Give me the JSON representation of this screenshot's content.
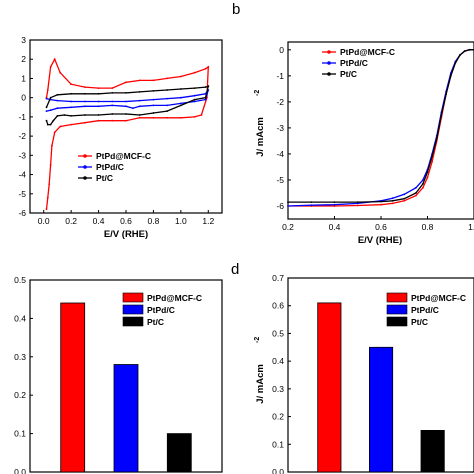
{
  "colors": {
    "red": "#ff0000",
    "blue": "#0000ff",
    "black": "#000000",
    "pink": "#f08080"
  },
  "chart_data": [
    {
      "panel": "a",
      "type": "line",
      "xlabel": "E/V (RHE)",
      "ylabel": "",
      "xlim": [
        -0.1,
        1.3
      ],
      "ylim": [
        -6,
        3
      ],
      "xticks": [
        "0.0",
        "0.2",
        "0.4",
        "0.6",
        "0.8",
        "1.0",
        "1.2"
      ],
      "yticks": [
        "-6",
        "-5",
        "-4",
        "-3",
        "-2",
        "-1",
        "0",
        "1",
        "2",
        "3"
      ],
      "legend": [
        "PtPd@MCF-C",
        "PtPd/C",
        "Pt/C"
      ],
      "series": [
        {
          "name": "PtPd@MCF-C",
          "color": "#ff0000",
          "x": [
            0.02,
            0.03,
            0.05,
            0.08,
            0.12,
            0.2,
            0.3,
            0.4,
            0.5,
            0.6,
            0.7,
            0.8,
            0.9,
            1.0,
            1.1,
            1.18,
            1.2,
            1.19,
            1.15,
            1.1,
            1.0,
            0.9,
            0.8,
            0.7,
            0.6,
            0.5,
            0.4,
            0.3,
            0.2,
            0.12,
            0.08,
            0.06,
            0.05,
            0.04,
            0.03,
            0.02
          ],
          "y": [
            0.0,
            0.4,
            1.6,
            2.0,
            1.3,
            0.7,
            0.55,
            0.5,
            0.5,
            0.8,
            0.9,
            0.9,
            1.0,
            1.1,
            1.3,
            1.5,
            1.6,
            0.0,
            -0.9,
            -1.0,
            -1.05,
            -1.05,
            -1.05,
            -1.05,
            -1.2,
            -1.2,
            -1.2,
            -1.3,
            -1.4,
            -1.5,
            -1.8,
            -2.5,
            -3.5,
            -4.5,
            -5.2,
            -5.8
          ]
        },
        {
          "name": "PtPd/C",
          "color": "#0000ff",
          "x": [
            0.02,
            0.05,
            0.1,
            0.2,
            0.3,
            0.4,
            0.5,
            0.6,
            0.7,
            0.8,
            0.9,
            1.0,
            1.1,
            1.18,
            1.2,
            1.18,
            1.1,
            1.0,
            0.9,
            0.8,
            0.7,
            0.65,
            0.6,
            0.5,
            0.4,
            0.3,
            0.2,
            0.1,
            0.05,
            0.02
          ],
          "y": [
            -0.05,
            -0.1,
            -0.15,
            -0.2,
            -0.2,
            -0.2,
            -0.2,
            -0.2,
            -0.15,
            -0.1,
            -0.05,
            0.0,
            0.1,
            0.2,
            0.4,
            -0.1,
            -0.2,
            -0.3,
            -0.4,
            -0.4,
            -0.45,
            -0.55,
            -0.45,
            -0.4,
            -0.45,
            -0.45,
            -0.5,
            -0.55,
            -0.65,
            -0.7
          ]
        },
        {
          "name": "Pt/C",
          "color": "#000000",
          "x": [
            0.02,
            0.05,
            0.1,
            0.2,
            0.3,
            0.4,
            0.5,
            0.6,
            0.7,
            0.8,
            0.9,
            1.0,
            1.1,
            1.18,
            1.2,
            1.18,
            1.1,
            1.0,
            0.9,
            0.8,
            0.7,
            0.6,
            0.5,
            0.4,
            0.3,
            0.2,
            0.15,
            0.1,
            0.07,
            0.05,
            0.03,
            0.02
          ],
          "y": [
            -0.5,
            0.0,
            0.15,
            0.2,
            0.2,
            0.2,
            0.25,
            0.25,
            0.3,
            0.35,
            0.4,
            0.45,
            0.5,
            0.55,
            0.6,
            0.0,
            -0.1,
            -0.4,
            -0.7,
            -0.8,
            -0.9,
            -0.85,
            -0.85,
            -0.9,
            -0.9,
            -0.95,
            -0.9,
            -0.95,
            -1.2,
            -1.4,
            -1.4,
            -1.2
          ]
        }
      ]
    },
    {
      "panel": "b",
      "type": "line",
      "xlabel": "E/V (RHE)",
      "ylabel": "J/ mAcm",
      "ylabel_sup": "-2",
      "xlim": [
        0.2,
        1.0
      ],
      "ylim": [
        -6.5,
        0.3
      ],
      "xticks": [
        "0.2",
        "0.4",
        "0.6",
        "0.8",
        "1.0"
      ],
      "yticks": [
        "0",
        "-1",
        "-2",
        "-3",
        "-4",
        "-5",
        "-6"
      ],
      "legend": [
        "PtPd@MCF-C",
        "PtPd/C",
        "Pt/C"
      ],
      "series": [
        {
          "name": "PtPd@MCF-C",
          "color": "#ff0000",
          "x": [
            0.2,
            0.3,
            0.4,
            0.5,
            0.6,
            0.65,
            0.7,
            0.75,
            0.78,
            0.8,
            0.82,
            0.84,
            0.86,
            0.88,
            0.9,
            0.92,
            0.94,
            0.96,
            0.98,
            1.0,
            1.02
          ],
          "y": [
            -6.0,
            -6.0,
            -6.0,
            -5.98,
            -5.95,
            -5.9,
            -5.8,
            -5.6,
            -5.3,
            -4.9,
            -4.3,
            -3.5,
            -2.6,
            -1.7,
            -1.0,
            -0.5,
            -0.2,
            -0.05,
            0.0,
            0.0,
            0.0
          ]
        },
        {
          "name": "PtPd/C",
          "color": "#0000ff",
          "x": [
            0.2,
            0.3,
            0.4,
            0.5,
            0.6,
            0.65,
            0.7,
            0.75,
            0.78,
            0.8,
            0.82,
            0.84,
            0.86,
            0.88,
            0.9,
            0.92,
            0.94,
            0.96,
            0.98,
            1.0,
            1.02
          ],
          "y": [
            -6.0,
            -5.97,
            -5.95,
            -5.9,
            -5.8,
            -5.7,
            -5.55,
            -5.3,
            -5.0,
            -4.6,
            -4.0,
            -3.3,
            -2.4,
            -1.6,
            -0.9,
            -0.45,
            -0.2,
            -0.05,
            0.0,
            0.0,
            0.0
          ]
        },
        {
          "name": "Pt/C",
          "color": "#000000",
          "x": [
            0.2,
            0.3,
            0.4,
            0.5,
            0.6,
            0.65,
            0.7,
            0.75,
            0.78,
            0.8,
            0.82,
            0.84,
            0.86,
            0.88,
            0.9,
            0.92,
            0.94,
            0.96,
            0.98,
            1.0,
            1.02
          ],
          "y": [
            -5.85,
            -5.85,
            -5.85,
            -5.85,
            -5.83,
            -5.8,
            -5.72,
            -5.5,
            -5.15,
            -4.7,
            -4.1,
            -3.4,
            -2.5,
            -1.7,
            -1.0,
            -0.5,
            -0.2,
            -0.05,
            0.0,
            0.0,
            0.0
          ]
        }
      ]
    },
    {
      "panel": "c",
      "type": "bar",
      "categories": [
        "PtPd@MCF-C",
        "PtPd/C",
        "Pt/C"
      ],
      "values": [
        0.44,
        0.28,
        0.1
      ],
      "colors": [
        "#ff0000",
        "#0000ff",
        "#000000"
      ],
      "ylim": [
        0.0,
        0.5
      ],
      "yticks": [
        "0.0",
        "0.1",
        "0.2",
        "0.3",
        "0.4",
        "0.5"
      ],
      "legend": [
        "PtPd@MCF-C",
        "PtPd/C",
        "Pt/C"
      ]
    },
    {
      "panel": "d",
      "type": "bar",
      "categories": [
        "PtPd@MCF-C",
        "PtPd/C",
        "Pt/C"
      ],
      "values": [
        0.61,
        0.45,
        0.15
      ],
      "colors": [
        "#ff0000",
        "#0000ff",
        "#000000"
      ],
      "ylim": [
        0.0,
        0.7
      ],
      "yticks": [
        "0.0",
        "0.1",
        "0.2",
        "0.3",
        "0.4",
        "0.5",
        "0.6",
        "0.7"
      ],
      "ylabel": "J/ mAcm",
      "ylabel_sup": "-2",
      "legend": [
        "PtPd@MCF-C",
        "PtPd/C",
        "Pt/C"
      ]
    }
  ],
  "panel_labels": {
    "b": "b",
    "d": "d"
  }
}
